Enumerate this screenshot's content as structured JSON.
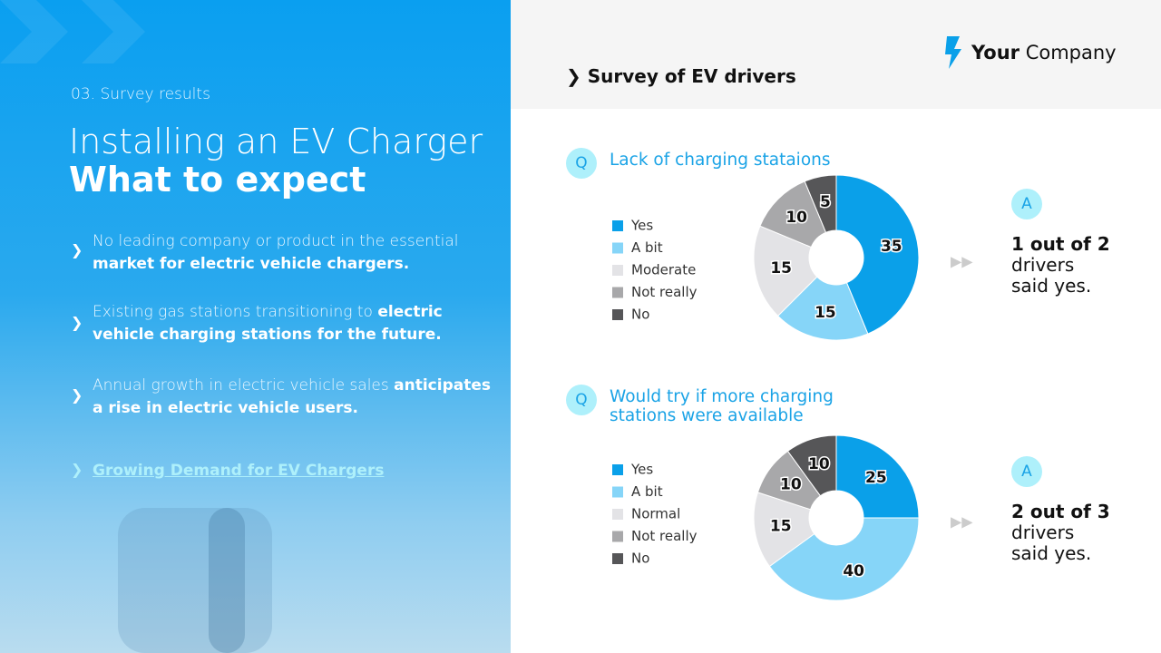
{
  "slide": {
    "section": "03. Survey results",
    "title_light": "Installing an EV Charger",
    "title_bold": "What to expect",
    "bullets": [
      {
        "light": "No leading company or product in the essential",
        "bold": "market for electric vehicle chargers."
      },
      {
        "light": "Existing gas stations transitioning to",
        "bold": "electric vehicle charging stations for the future."
      },
      {
        "light": "Annual growth in electric vehicle sales",
        "bold": "anticipates a rise in electric vehicle users."
      }
    ],
    "link": "Growing Demand for EV Chargers",
    "logo_bold": "Your",
    "logo_light": "Company",
    "panel_title": "Survey of EV drivers"
  },
  "chart_data": [
    {
      "type": "donut",
      "marker": "Q",
      "title": "Lack of charging stataions",
      "categories": [
        "Yes",
        "A bit",
        "Moderate",
        "Not really",
        "No"
      ],
      "values": [
        35,
        15,
        15,
        10,
        5
      ],
      "colors": [
        "#0aa0e9",
        "#86d5f8",
        "#e3e3e6",
        "#a8a8aa",
        "#565658"
      ],
      "answer_marker": "A",
      "answer_bold": "1 out of 2",
      "answer_text": "drivers said yes."
    },
    {
      "type": "donut",
      "marker": "Q",
      "title": "Would try if more charging stations were available",
      "categories": [
        "Yes",
        "A bit",
        "Normal",
        "Not really",
        "No"
      ],
      "values": [
        25,
        40,
        15,
        10,
        10
      ],
      "colors": [
        "#0aa0e9",
        "#86d5f8",
        "#e3e3e6",
        "#a8a8aa",
        "#565658"
      ],
      "answer_marker": "A",
      "answer_bold": "2 out of 3",
      "answer_text": "drivers said yes."
    }
  ]
}
